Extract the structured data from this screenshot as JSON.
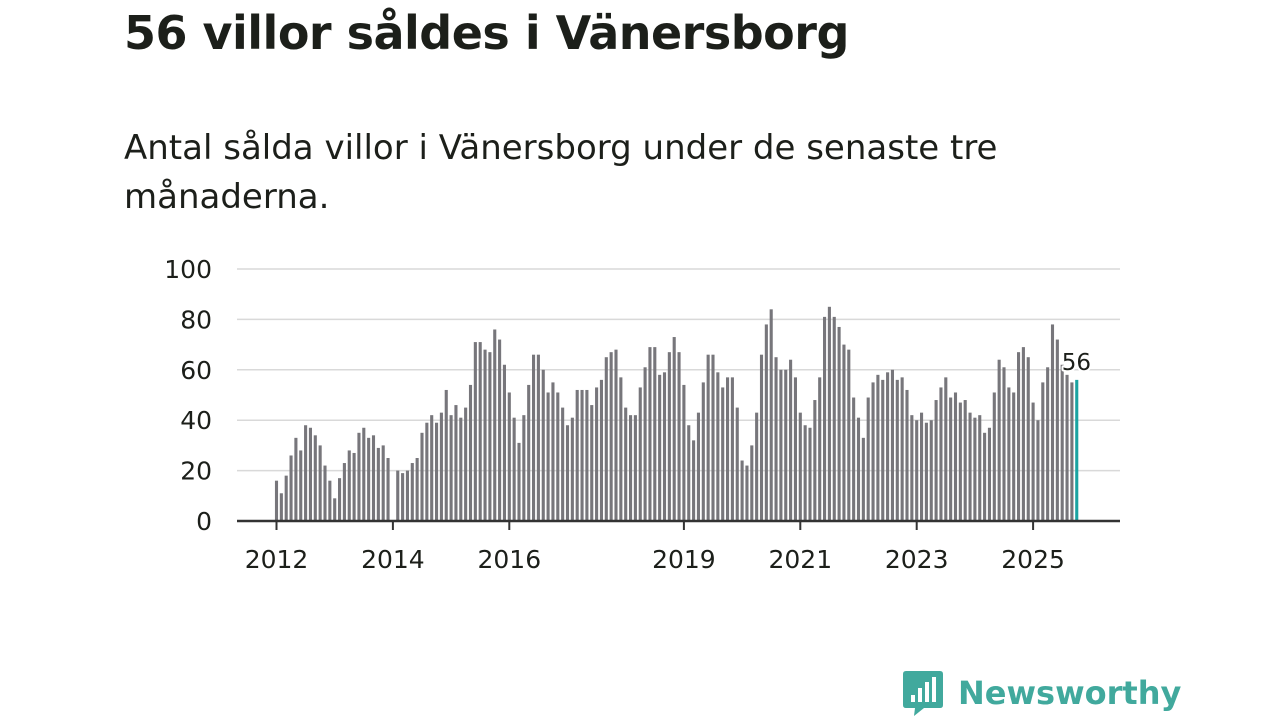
{
  "title": "56 villor såldes i Vänersborg",
  "subtitle": "Antal sålda villor i Vänersborg under de senaste tre månaderna.",
  "brand": {
    "name": "Newsworthy",
    "icon": "chart-bubble-icon"
  },
  "colors": {
    "bar": "#77767b",
    "highlight": "#1aa3a1",
    "grid": "#d9d9d9",
    "axis": "#333333",
    "text": "#1c1f1a",
    "brand": "#41a99d"
  },
  "chart_data": {
    "type": "bar",
    "title": "56 villor såldes i Vänersborg",
    "xlabel": "",
    "ylabel": "",
    "ylim": [
      0,
      100
    ],
    "yticks": [
      0,
      20,
      40,
      60,
      80,
      100
    ],
    "xtick_labels": [
      "2012",
      "2014",
      "2016",
      "2019",
      "2021",
      "2023",
      "2025"
    ],
    "first_month": "2012-01",
    "highlight_label": "56",
    "values": [
      16,
      11,
      18,
      26,
      33,
      28,
      38,
      37,
      34,
      30,
      22,
      16,
      9,
      17,
      23,
      28,
      27,
      35,
      37,
      33,
      34,
      29,
      30,
      25,
      0,
      20,
      19,
      20,
      23,
      25,
      35,
      39,
      42,
      39,
      43,
      52,
      42,
      46,
      41,
      45,
      54,
      71,
      71,
      68,
      67,
      76,
      72,
      62,
      51,
      41,
      31,
      42,
      54,
      66,
      66,
      60,
      51,
      55,
      51,
      45,
      38,
      41,
      52,
      52,
      52,
      46,
      53,
      56,
      65,
      67,
      68,
      57,
      45,
      42,
      42,
      53,
      61,
      69,
      69,
      58,
      59,
      67,
      73,
      67,
      54,
      38,
      32,
      43,
      55,
      66,
      66,
      59,
      53,
      57,
      57,
      45,
      24,
      22,
      30,
      43,
      66,
      78,
      84,
      65,
      60,
      60,
      64,
      57,
      43,
      38,
      37,
      48,
      57,
      81,
      85,
      81,
      77,
      70,
      68,
      49,
      41,
      33,
      49,
      55,
      58,
      56,
      59,
      60,
      56,
      57,
      52,
      42,
      40,
      43,
      39,
      40,
      48,
      53,
      57,
      49,
      51,
      47,
      48,
      43,
      41,
      42,
      35,
      37,
      51,
      64,
      61,
      53,
      51,
      67,
      69,
      65,
      47,
      40,
      55,
      61,
      78,
      72,
      62,
      58,
      55,
      56
    ]
  }
}
